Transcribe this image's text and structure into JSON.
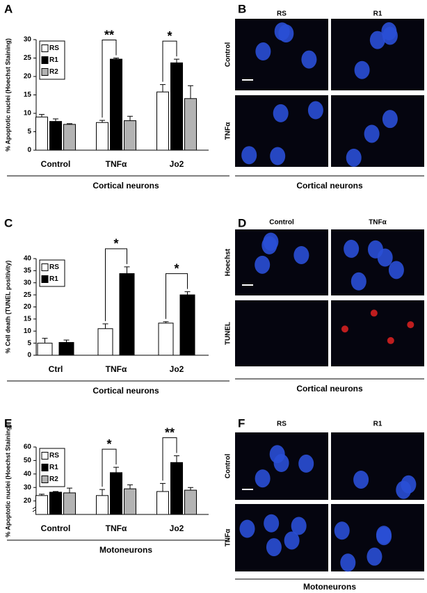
{
  "chart_data": [
    {
      "type": "bar",
      "panel": "A",
      "ylabel": "% Apoptotic nuclei (Hoechst Staining)",
      "xlabel": "Cortical neurons",
      "categories": [
        "Control",
        "TNFα",
        "Jo2"
      ],
      "series": [
        {
          "name": "RS",
          "color": "#ffffff",
          "values": [
            9,
            7.5,
            15.8
          ],
          "errors": [
            0.7,
            0.6,
            2
          ]
        },
        {
          "name": "R1",
          "color": "#000000",
          "values": [
            7.8,
            24.7,
            23.7
          ],
          "errors": [
            0.7,
            0.3,
            1
          ]
        },
        {
          "name": "R2",
          "color": "#b3b3b3",
          "values": [
            7,
            8,
            14
          ],
          "errors": [
            0.2,
            1.2,
            3.5
          ]
        }
      ],
      "significance": [
        null,
        "**",
        "*"
      ],
      "ylim": [
        0,
        30
      ],
      "yticks": [
        0,
        5,
        10,
        15,
        20,
        25,
        30
      ],
      "axis_break": false
    },
    {
      "type": "bar",
      "panel": "C",
      "ylabel": "% Cell death (TUNEL positivity)",
      "xlabel": "Cortical neurons",
      "categories": [
        "Ctrl",
        "TNFα",
        "Jo2"
      ],
      "series": [
        {
          "name": "RS",
          "color": "#ffffff",
          "values": [
            5,
            11,
            13.3
          ],
          "errors": [
            2,
            2,
            0.6
          ]
        },
        {
          "name": "R1",
          "color": "#000000",
          "values": [
            5.3,
            33.8,
            25
          ],
          "errors": [
            1,
            2.8,
            1.3
          ]
        }
      ],
      "significance": [
        null,
        "*",
        "*"
      ],
      "ylim": [
        0,
        40
      ],
      "yticks": [
        0,
        5,
        10,
        15,
        20,
        25,
        30,
        35,
        40
      ],
      "axis_break": false
    },
    {
      "type": "bar",
      "panel": "E",
      "ylabel": "% Apoptotic nuclei (Hoechst Staining)",
      "xlabel": "Motoneurons",
      "categories": [
        "Control",
        "TNFα",
        "Jo2"
      ],
      "series": [
        {
          "name": "RS",
          "color": "#ffffff",
          "values": [
            24,
            24,
            27
          ],
          "errors": [
            1,
            4.5,
            6
          ]
        },
        {
          "name": "R1",
          "color": "#000000",
          "values": [
            26.5,
            41,
            48.5
          ],
          "errors": [
            0.5,
            4,
            5
          ]
        },
        {
          "name": "R2",
          "color": "#b3b3b3",
          "values": [
            26,
            29,
            28
          ],
          "errors": [
            3.5,
            3,
            2
          ]
        }
      ],
      "significance": [
        null,
        "*",
        "**"
      ],
      "ylim": [
        10,
        60
      ],
      "yticks": [
        20,
        30,
        40,
        50,
        60
      ],
      "axis_break": true
    }
  ],
  "image_panels": [
    {
      "panel": "B",
      "columns": [
        "RS",
        "R1"
      ],
      "rows": [
        "Control",
        "TNFα"
      ],
      "caption": "Cortical neurons"
    },
    {
      "panel": "D",
      "columns": [
        "Control",
        "TNFα"
      ],
      "rows": [
        "Hoechst",
        "TUNEL"
      ],
      "caption": "Cortical neurons"
    },
    {
      "panel": "F",
      "columns": [
        "RS",
        "R1"
      ],
      "rows": [
        "Control",
        "TNFα"
      ],
      "caption": "Motoneurons"
    }
  ]
}
